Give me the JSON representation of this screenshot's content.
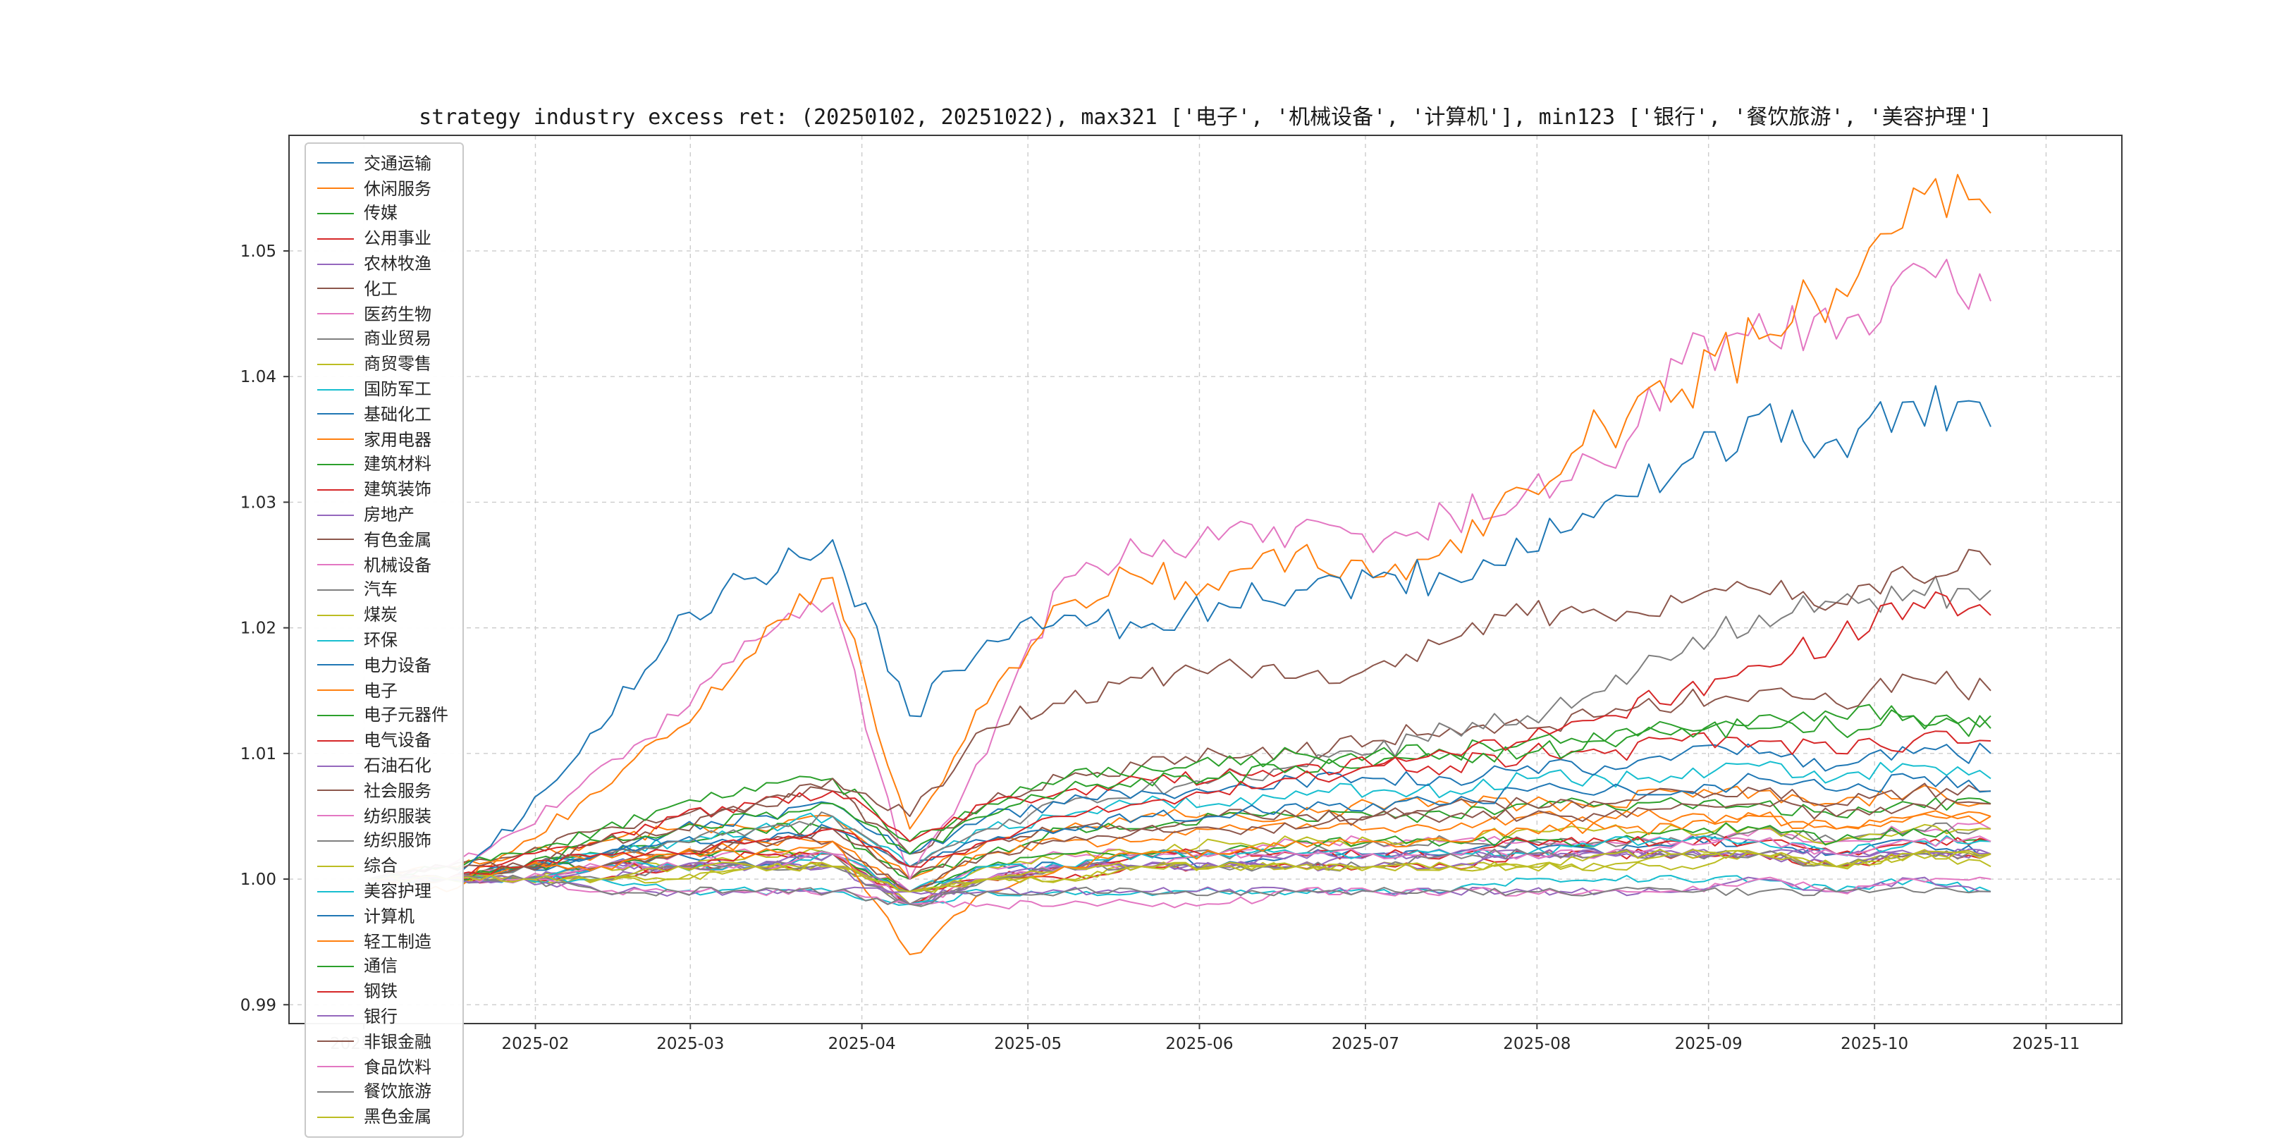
{
  "chart_data": {
    "type": "line",
    "title": "strategy industry excess ret: (20250102, 20251022), max321 ['电子', '机械设备', '计算机'], min123 ['银行', '餐饮旅游', '美容护理']",
    "date_range": [
      "2025-01-02",
      "2025-10-22"
    ],
    "total_days": 293,
    "xlabel": "",
    "ylabel": "",
    "grid": "dashed-both-axes",
    "legend_position": "upper-left",
    "ylim": [
      0.9885,
      1.0592
    ],
    "y_ticks": [
      0.99,
      1.0,
      1.01,
      1.02,
      1.03,
      1.04,
      1.05
    ],
    "y_tick_labels": [
      "0.99",
      "1.00",
      "1.01",
      "1.02",
      "1.03",
      "1.04",
      "1.05"
    ],
    "x_ticks": [
      {
        "label": "2025-01",
        "day": -1
      },
      {
        "label": "2025-02",
        "day": 30
      },
      {
        "label": "2025-03",
        "day": 58
      },
      {
        "label": "2025-04",
        "day": 89
      },
      {
        "label": "2025-05",
        "day": 119
      },
      {
        "label": "2025-06",
        "day": 150
      },
      {
        "label": "2025-07",
        "day": 180
      },
      {
        "label": "2025-08",
        "day": 211
      },
      {
        "label": "2025-09",
        "day": 242
      },
      {
        "label": "2025-10",
        "day": 272
      },
      {
        "label": "2025-11",
        "day": 303
      }
    ],
    "series": [
      {
        "name": "交通运输",
        "color": "#1f77b4",
        "values": [
          1.0,
          1.0,
          1.001,
          1.001,
          1.002,
          1.001,
          1.002,
          0.999,
          1.001,
          1.001,
          1.002,
          1.001,
          1.002,
          1.002,
          1.002,
          1.003,
          1.002,
          1.003,
          1.003,
          1.002,
          1.003,
          1.002
        ]
      },
      {
        "name": "休闲服务",
        "color": "#ff7f0e",
        "values": [
          1.0,
          1.001,
          1.002,
          1.003,
          1.004,
          1.004,
          1.005,
          1.0,
          1.003,
          1.004,
          1.005,
          1.005,
          1.005,
          1.006,
          1.006,
          1.006,
          1.006,
          1.007,
          1.007,
          1.006,
          1.007,
          1.006
        ]
      },
      {
        "name": "传媒",
        "color": "#2ca02c",
        "values": [
          1.0,
          1.0,
          1.001,
          1.002,
          1.003,
          1.004,
          1.004,
          1.0,
          1.002,
          1.004,
          1.004,
          1.005,
          1.005,
          1.005,
          1.005,
          1.006,
          1.006,
          1.006,
          1.006,
          1.005,
          1.006,
          1.006
        ]
      },
      {
        "name": "公用事业",
        "color": "#d62728",
        "values": [
          1.0,
          1.0,
          1.0,
          1.0,
          1.001,
          1.001,
          1.001,
          0.999,
          1.0,
          1.0,
          1.001,
          1.001,
          1.001,
          1.001,
          1.001,
          1.002,
          1.002,
          1.002,
          1.002,
          1.001,
          1.002,
          1.002
        ]
      },
      {
        "name": "农林牧渔",
        "color": "#9467bd",
        "values": [
          1.0,
          1.0,
          1.0,
          1.001,
          1.001,
          1.001,
          1.001,
          0.998,
          1.0,
          1.001,
          1.001,
          1.001,
          1.001,
          1.002,
          1.002,
          1.002,
          1.002,
          1.002,
          1.002,
          1.002,
          1.002,
          1.002
        ]
      },
      {
        "name": "化工",
        "color": "#8c564b",
        "values": [
          1.0,
          1.0,
          1.001,
          1.002,
          1.002,
          1.003,
          1.004,
          1.0,
          1.003,
          1.004,
          1.004,
          1.005,
          1.005,
          1.005,
          1.006,
          1.006,
          1.006,
          1.007,
          1.007,
          1.006,
          1.007,
          1.007
        ]
      },
      {
        "name": "医药生物",
        "color": "#e377c2",
        "values": [
          1.0,
          1.0,
          1.001,
          1.001,
          1.002,
          1.002,
          1.002,
          0.999,
          1.001,
          1.002,
          1.002,
          1.002,
          1.003,
          1.003,
          1.003,
          1.003,
          1.003,
          1.003,
          1.004,
          1.003,
          1.004,
          1.004
        ]
      },
      {
        "name": "商业贸易",
        "color": "#7f7f7f",
        "values": [
          1.0,
          1.0,
          1.0,
          1.001,
          1.001,
          1.001,
          1.002,
          0.998,
          1.0,
          1.001,
          1.002,
          1.002,
          1.002,
          1.003,
          1.003,
          1.003,
          1.003,
          1.003,
          1.004,
          1.003,
          1.004,
          1.004
        ]
      },
      {
        "name": "商贸零售",
        "color": "#bcbd22",
        "values": [
          1.0,
          1.0,
          1.0,
          1.001,
          1.001,
          1.002,
          1.002,
          0.998,
          1.001,
          1.002,
          1.002,
          1.003,
          1.003,
          1.003,
          1.003,
          1.004,
          1.004,
          1.004,
          1.004,
          1.003,
          1.004,
          1.004
        ]
      },
      {
        "name": "国防军工",
        "color": "#17becf",
        "values": [
          1.0,
          1.0,
          1.001,
          1.002,
          1.003,
          1.004,
          1.005,
          1.001,
          1.004,
          1.005,
          1.006,
          1.006,
          1.007,
          1.007,
          1.007,
          1.008,
          1.008,
          1.008,
          1.009,
          1.008,
          1.009,
          1.008
        ]
      },
      {
        "name": "基础化工",
        "color": "#1f77b4",
        "values": [
          1.0,
          1.0,
          1.001,
          1.002,
          1.003,
          1.003,
          1.004,
          1.001,
          1.003,
          1.004,
          1.005,
          1.005,
          1.006,
          1.006,
          1.006,
          1.007,
          1.007,
          1.007,
          1.008,
          1.007,
          1.008,
          1.007
        ]
      },
      {
        "name": "家用电器",
        "color": "#ff7f0e",
        "values": [
          1.0,
          1.0,
          1.001,
          1.002,
          1.002,
          1.003,
          1.003,
          0.999,
          1.002,
          1.003,
          1.003,
          1.004,
          1.004,
          1.004,
          1.004,
          1.005,
          1.005,
          1.005,
          1.005,
          1.004,
          1.005,
          1.005
        ]
      },
      {
        "name": "建筑材料",
        "color": "#2ca02c",
        "values": [
          1.0,
          1.0,
          1.001,
          1.001,
          1.002,
          1.002,
          1.002,
          0.999,
          1.001,
          1.002,
          1.002,
          1.002,
          1.003,
          1.003,
          1.003,
          1.003,
          1.003,
          1.004,
          1.004,
          1.003,
          1.004,
          1.003
        ]
      },
      {
        "name": "建筑装饰",
        "color": "#d62728",
        "values": [
          1.0,
          1.0,
          1.0,
          1.001,
          1.001,
          1.002,
          1.002,
          0.998,
          1.0,
          1.001,
          1.002,
          1.002,
          1.002,
          1.002,
          1.002,
          1.003,
          1.003,
          1.003,
          1.003,
          1.002,
          1.003,
          1.003
        ]
      },
      {
        "name": "房地产",
        "color": "#9467bd",
        "values": [
          1.0,
          1.0,
          1.0,
          1.001,
          1.001,
          1.001,
          1.002,
          0.998,
          1.0,
          1.001,
          1.001,
          1.001,
          1.002,
          1.002,
          1.002,
          1.002,
          1.002,
          1.002,
          1.002,
          1.002,
          1.002,
          1.002
        ]
      },
      {
        "name": "有色金属",
        "color": "#8c564b",
        "values": [
          1.0,
          1.001,
          1.002,
          1.004,
          1.005,
          1.006,
          1.007,
          1.002,
          1.006,
          1.008,
          1.009,
          1.01,
          1.01,
          1.011,
          1.012,
          1.012,
          1.013,
          1.014,
          1.015,
          1.014,
          1.016,
          1.015
        ]
      },
      {
        "name": "机械设备",
        "color": "#e377c2",
        "values": [
          1.0,
          1.001,
          1.004,
          1.009,
          1.013,
          1.019,
          1.022,
          1.0,
          1.01,
          1.024,
          1.026,
          1.027,
          1.028,
          1.026,
          1.029,
          1.031,
          1.033,
          1.041,
          1.045,
          1.043,
          1.049,
          1.046
        ]
      },
      {
        "name": "汽车",
        "color": "#7f7f7f",
        "values": [
          1.0,
          1.0,
          1.001,
          1.002,
          1.003,
          1.004,
          1.005,
          1.001,
          1.004,
          1.006,
          1.007,
          1.008,
          1.009,
          1.01,
          1.012,
          1.013,
          1.015,
          1.018,
          1.021,
          1.022,
          1.023,
          1.023
        ]
      },
      {
        "name": "煤炭",
        "color": "#bcbd22",
        "values": [
          1.0,
          1.0,
          1.0,
          1.0,
          1.0,
          1.001,
          1.001,
          0.999,
          1.0,
          1.0,
          1.001,
          1.001,
          1.001,
          1.001,
          1.001,
          1.001,
          1.001,
          1.001,
          1.002,
          1.001,
          1.002,
          1.001
        ]
      },
      {
        "name": "环保",
        "color": "#17becf",
        "values": [
          1.0,
          1.0,
          1.0,
          1.001,
          1.001,
          1.001,
          1.002,
          0.999,
          1.001,
          1.001,
          1.002,
          1.002,
          1.002,
          1.002,
          1.002,
          1.002,
          1.003,
          1.003,
          1.003,
          1.002,
          1.003,
          1.003
        ]
      },
      {
        "name": "电力设备",
        "color": "#1f77b4",
        "values": [
          1.0,
          1.0,
          1.001,
          1.002,
          1.004,
          1.005,
          1.006,
          1.002,
          1.005,
          1.006,
          1.007,
          1.007,
          1.008,
          1.008,
          1.008,
          1.009,
          1.009,
          1.01,
          1.01,
          1.009,
          1.01,
          1.01
        ]
      },
      {
        "name": "电子",
        "color": "#ff7f0e",
        "values": [
          1.0,
          0.999,
          1.003,
          1.007,
          1.012,
          1.018,
          1.024,
          1.004,
          1.014,
          1.022,
          1.024,
          1.023,
          1.026,
          1.024,
          1.027,
          1.031,
          1.036,
          1.039,
          1.043,
          1.047,
          1.055,
          1.053
        ]
      },
      {
        "name": "电子元器件",
        "color": "#2ca02c",
        "values": [
          1.0,
          1.001,
          1.002,
          1.004,
          1.006,
          1.007,
          1.008,
          1.003,
          1.006,
          1.008,
          1.009,
          1.009,
          1.01,
          1.01,
          1.01,
          1.011,
          1.011,
          1.012,
          1.013,
          1.012,
          1.013,
          1.012
        ]
      },
      {
        "name": "电气设备",
        "color": "#d62728",
        "values": [
          1.0,
          1.0,
          1.002,
          1.003,
          1.005,
          1.006,
          1.007,
          1.003,
          1.006,
          1.007,
          1.008,
          1.008,
          1.009,
          1.009,
          1.009,
          1.01,
          1.01,
          1.011,
          1.011,
          1.01,
          1.011,
          1.011
        ]
      },
      {
        "name": "石油石化",
        "color": "#9467bd",
        "values": [
          1.0,
          1.0,
          1.0,
          1.0,
          1.001,
          1.001,
          1.001,
          0.999,
          1.0,
          1.001,
          1.001,
          1.001,
          1.001,
          1.001,
          1.001,
          1.002,
          1.002,
          1.002,
          1.002,
          1.001,
          1.002,
          1.002
        ]
      },
      {
        "name": "社会服务",
        "color": "#8c564b",
        "values": [
          1.0,
          1.0,
          1.001,
          1.001,
          1.002,
          1.003,
          1.003,
          0.999,
          1.002,
          1.003,
          1.004,
          1.004,
          1.004,
          1.005,
          1.005,
          1.005,
          1.005,
          1.006,
          1.006,
          1.005,
          1.006,
          1.006
        ]
      },
      {
        "name": "纺织服装",
        "color": "#e377c2",
        "values": [
          1.0,
          1.0,
          1.0,
          1.001,
          1.001,
          1.001,
          1.002,
          0.998,
          1.0,
          1.001,
          1.001,
          1.002,
          1.002,
          1.002,
          1.002,
          1.002,
          1.002,
          1.003,
          1.003,
          1.002,
          1.003,
          1.003
        ]
      },
      {
        "name": "纺织服饰",
        "color": "#7f7f7f",
        "values": [
          1.0,
          1.0,
          1.0,
          1.0,
          1.001,
          1.001,
          1.001,
          0.998,
          1.0,
          1.001,
          1.001,
          1.001,
          1.001,
          1.001,
          1.002,
          1.002,
          1.002,
          1.002,
          1.002,
          1.001,
          1.002,
          1.002
        ]
      },
      {
        "name": "综合",
        "color": "#bcbd22",
        "values": [
          1.0,
          1.0,
          1.0,
          1.0,
          1.001,
          1.001,
          1.001,
          0.999,
          1.0,
          1.001,
          1.001,
          1.001,
          1.001,
          1.001,
          1.001,
          1.001,
          1.002,
          1.002,
          1.002,
          1.001,
          1.002,
          1.002
        ]
      },
      {
        "name": "美容护理",
        "color": "#17becf",
        "values": [
          1.0,
          1.0,
          1.0,
          1.0,
          0.999,
          0.999,
          0.999,
          0.998,
          0.999,
          0.999,
          0.999,
          0.999,
          0.999,
          0.999,
          0.999,
          1.0,
          1.0,
          1.0,
          1.0,
          0.999,
          1.0,
          0.999
        ]
      },
      {
        "name": "计算机",
        "color": "#1f77b4",
        "values": [
          1.0,
          1.0,
          1.005,
          1.012,
          1.021,
          1.024,
          1.027,
          1.013,
          1.019,
          1.021,
          1.02,
          1.022,
          1.023,
          1.024,
          1.024,
          1.026,
          1.03,
          1.033,
          1.037,
          1.035,
          1.038,
          1.036
        ]
      },
      {
        "name": "轻工制造",
        "color": "#ff7f0e",
        "values": [
          1.0,
          1.0,
          1.001,
          1.001,
          1.002,
          1.002,
          1.003,
          0.994,
          0.999,
          1.001,
          1.002,
          1.002,
          1.003,
          1.003,
          1.003,
          1.004,
          1.004,
          1.004,
          1.005,
          1.004,
          1.005,
          1.005
        ]
      },
      {
        "name": "通信",
        "color": "#2ca02c",
        "values": [
          1.0,
          1.0,
          1.001,
          1.003,
          1.004,
          1.005,
          1.006,
          1.002,
          1.005,
          1.007,
          1.008,
          1.008,
          1.009,
          1.009,
          1.01,
          1.01,
          1.011,
          1.012,
          1.012,
          1.013,
          1.013,
          1.013
        ]
      },
      {
        "name": "钢铁",
        "color": "#d62728",
        "values": [
          1.0,
          1.0,
          1.001,
          1.002,
          1.002,
          1.003,
          1.004,
          1.001,
          1.003,
          1.005,
          1.006,
          1.007,
          1.008,
          1.009,
          1.01,
          1.011,
          1.013,
          1.015,
          1.017,
          1.019,
          1.022,
          1.021
        ]
      },
      {
        "name": "银行",
        "color": "#9467bd",
        "values": [
          1.0,
          1.0,
          1.0,
          0.999,
          0.999,
          0.999,
          0.999,
          0.999,
          0.999,
          0.999,
          0.999,
          0.999,
          0.999,
          0.999,
          0.999,
          0.999,
          0.999,
          0.999,
          1.0,
          0.999,
          1.0,
          0.999
        ]
      },
      {
        "name": "非银金融",
        "color": "#8c564b",
        "values": [
          1.0,
          1.001,
          1.001,
          1.003,
          1.004,
          1.006,
          1.008,
          1.005,
          1.012,
          1.014,
          1.016,
          1.017,
          1.016,
          1.017,
          1.019,
          1.021,
          1.021,
          1.022,
          1.023,
          1.022,
          1.024,
          1.025
        ]
      },
      {
        "name": "食品饮料",
        "color": "#e377c2",
        "values": [
          1.0,
          1.0,
          1.0,
          0.999,
          0.999,
          0.999,
          0.999,
          0.998,
          0.998,
          0.998,
          0.998,
          0.998,
          0.999,
          0.999,
          0.999,
          0.999,
          0.999,
          0.999,
          1.0,
          0.999,
          1.0,
          1.0
        ]
      },
      {
        "name": "餐饮旅游",
        "color": "#7f7f7f",
        "values": [
          1.0,
          1.0,
          1.0,
          0.999,
          0.999,
          0.999,
          0.999,
          0.998,
          0.999,
          0.999,
          0.999,
          0.999,
          0.999,
          0.999,
          0.999,
          0.999,
          0.999,
          0.999,
          0.999,
          0.999,
          0.999,
          0.999
        ]
      },
      {
        "name": "黑色金属",
        "color": "#bcbd22",
        "values": [
          1.0,
          1.0,
          1.0,
          1.0,
          1.0,
          1.001,
          1.001,
          0.999,
          1.0,
          1.0,
          1.001,
          1.001,
          1.001,
          1.001,
          1.001,
          1.001,
          1.001,
          1.002,
          1.002,
          1.001,
          1.002,
          1.002
        ]
      }
    ],
    "style": {
      "grid_color": "#cccccc",
      "spine_color": "#3a3a3a",
      "tick_label_color": "#262626",
      "background": "#ffffff",
      "noise_amplitude_hint": 0.0025
    }
  }
}
